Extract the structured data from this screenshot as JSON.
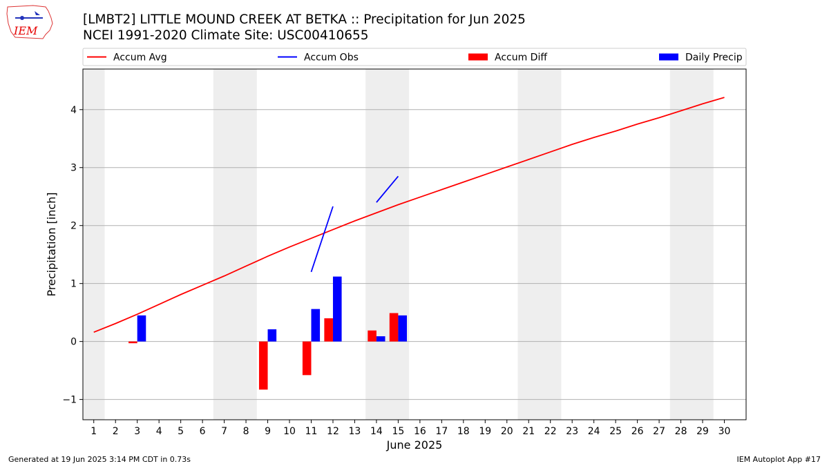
{
  "header": {
    "title_line1": "[LMBT2] LITTLE MOUND CREEK AT BETKA :: Precipitation for Jun 2025",
    "title_line2": "NCEI 1991-2020 Climate Site: USC00410655"
  },
  "logo": {
    "text": "IEM",
    "color": "#e60000"
  },
  "footer": {
    "left": "Generated at 19 Jun 2025 3:14 PM CDT in 0.73s",
    "right": "IEM Autoplot App #17"
  },
  "chart_data": {
    "type": "bar",
    "title": "[LMBT2] LITTLE MOUND CREEK AT BETKA :: Precipitation for Jun 2025",
    "subtitle": "NCEI 1991-2020 Climate Site: USC00410655",
    "xlabel": "June 2025",
    "ylabel": "Precipitation [inch]",
    "xlim": [
      0.5,
      31.0
    ],
    "ylim": [
      -1.35,
      4.7
    ],
    "xticks": [
      "1",
      "2",
      "3",
      "4",
      "5",
      "6",
      "7",
      "8",
      "9",
      "10",
      "11",
      "12",
      "13",
      "14",
      "15",
      "16",
      "17",
      "18",
      "19",
      "20",
      "21",
      "22",
      "23",
      "24",
      "25",
      "26",
      "27",
      "28",
      "29",
      "30"
    ],
    "yticks": [
      -1,
      0,
      1,
      2,
      3,
      4
    ],
    "ytick_labels": [
      "−1",
      "0",
      "1",
      "2",
      "3",
      "4"
    ],
    "grid": "y",
    "weekend_bands": [
      [
        0.5,
        1.5
      ],
      [
        6.5,
        8.5
      ],
      [
        13.5,
        15.5
      ],
      [
        20.5,
        22.5
      ],
      [
        27.5,
        29.5
      ]
    ],
    "legend": {
      "placement": "top",
      "entries": [
        {
          "label": "Accum Avg",
          "kind": "line",
          "color": "#ff0000"
        },
        {
          "label": "Accum Obs",
          "kind": "line",
          "color": "#0000ff"
        },
        {
          "label": "Accum Diff",
          "kind": "bar",
          "color": "#ff0000"
        },
        {
          "label": "Daily Precip",
          "kind": "bar",
          "color": "#0000ff"
        }
      ]
    },
    "series": [
      {
        "name": "Accum Avg",
        "kind": "line",
        "color": "#ff0000",
        "x": [
          1,
          2,
          3,
          4,
          5,
          6,
          7,
          8,
          9,
          10,
          11,
          12,
          13,
          14,
          15,
          16,
          17,
          18,
          19,
          20,
          21,
          22,
          23,
          24,
          25,
          26,
          27,
          28,
          29,
          30
        ],
        "values": [
          0.16,
          0.31,
          0.47,
          0.64,
          0.81,
          0.97,
          1.13,
          1.3,
          1.47,
          1.63,
          1.78,
          1.93,
          2.08,
          2.22,
          2.36,
          2.49,
          2.62,
          2.75,
          2.88,
          3.01,
          3.14,
          3.27,
          3.4,
          3.52,
          3.63,
          3.75,
          3.86,
          3.98,
          4.1,
          4.21
        ]
      },
      {
        "name": "Accum Obs",
        "kind": "line",
        "color": "#0000ff",
        "segments": [
          {
            "x": [
              11,
              12
            ],
            "values": [
              1.2,
              2.33
            ]
          },
          {
            "x": [
              14,
              15
            ],
            "values": [
              2.4,
              2.85
            ]
          }
        ]
      },
      {
        "name": "Accum Diff",
        "kind": "bar",
        "color": "#ff0000",
        "x": [
          3,
          9,
          11,
          12,
          14,
          15
        ],
        "values": [
          -0.03,
          -0.83,
          -0.58,
          0.4,
          0.19,
          0.49
        ]
      },
      {
        "name": "Daily Precip",
        "kind": "bar",
        "color": "#0000ff",
        "x": [
          3,
          9,
          11,
          12,
          14,
          15
        ],
        "values": [
          0.45,
          0.21,
          0.56,
          1.12,
          0.09,
          0.45
        ]
      }
    ]
  }
}
